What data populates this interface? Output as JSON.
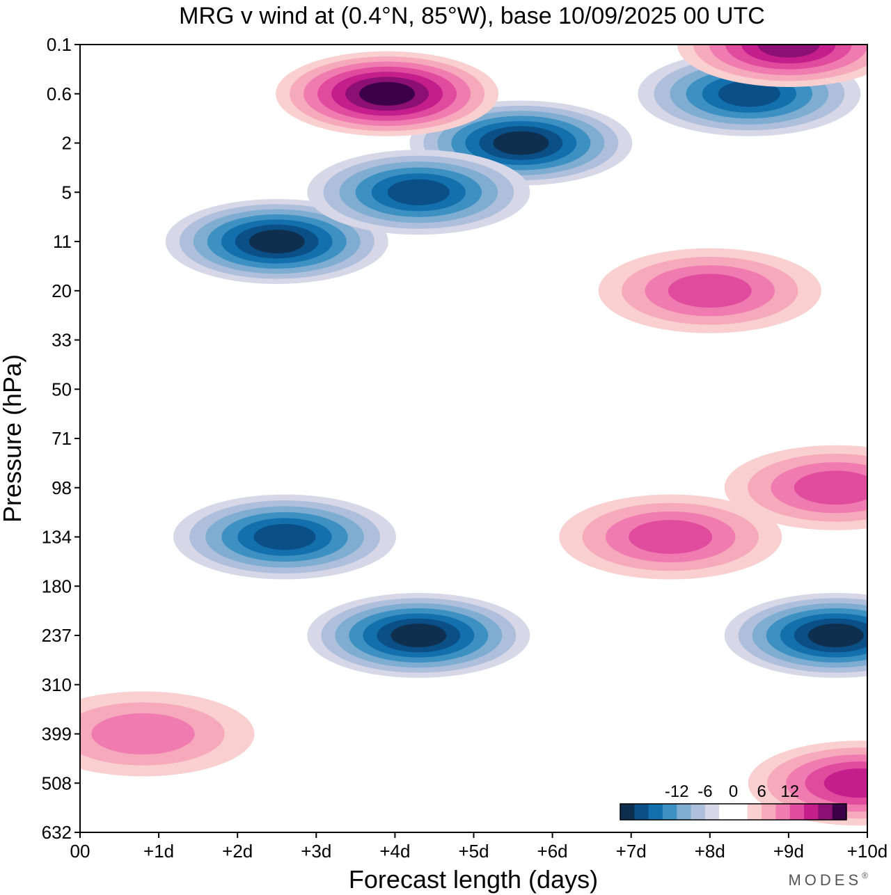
{
  "chart_data": {
    "type": "heatmap",
    "title": "MRG v wind at (0.4°N, 85°W),  base 10/09/2025  00 UTC",
    "xlabel": "Forecast length (days)",
    "ylabel": "Pressure (hPa)",
    "x_ticks": [
      "00",
      "+1d",
      "+2d",
      "+3d",
      "+4d",
      "+5d",
      "+6d",
      "+7d",
      "+8d",
      "+9d",
      "+10d"
    ],
    "x_range_days": [
      0,
      10
    ],
    "y_ticks": [
      "0.1",
      "0.6",
      "2",
      "5",
      "11",
      "20",
      "33",
      "50",
      "71",
      "98",
      "134",
      "180",
      "237",
      "310",
      "399",
      "508",
      "632"
    ],
    "y_direction": "pressure increasing downward",
    "colorbar": {
      "tick_labels": [
        "-12",
        "-6",
        "0",
        "6",
        "12"
      ],
      "levels": [
        -16,
        -14,
        -12,
        -10,
        -8,
        -6,
        -4,
        -2,
        2,
        4,
        6,
        8,
        10,
        12,
        14,
        16
      ],
      "colors": [
        "#0f2f4f",
        "#0a4f86",
        "#1470ad",
        "#3d90c2",
        "#7fadd2",
        "#aebfdc",
        "#d7d7e8",
        "#ffffff",
        "#ffffff",
        "#f9cfcf",
        "#f6a9bb",
        "#f07bb0",
        "#e04b9e",
        "#c41e8c",
        "#8c0f74",
        "#3c0048"
      ]
    },
    "features": [
      {
        "sign": "negative",
        "center_day": 2.6,
        "center_level": "134",
        "peak": -12
      },
      {
        "sign": "negative",
        "center_day": 4.3,
        "center_level": "237",
        "peak": -14
      },
      {
        "sign": "negative",
        "center_day": 9.6,
        "center_level": "237",
        "peak": -14
      },
      {
        "sign": "negative",
        "center_day": 2.5,
        "center_level": "11",
        "peak": -13
      },
      {
        "sign": "negative",
        "center_day": 5.6,
        "center_level": "2",
        "peak": -13
      },
      {
        "sign": "negative",
        "center_day": 4.3,
        "center_level": "5",
        "peak": -12
      },
      {
        "sign": "negative",
        "center_day": 8.5,
        "center_level": "0.6",
        "peak": -12
      },
      {
        "sign": "positive",
        "center_day": 3.9,
        "center_level": "0.6",
        "peak": 13
      },
      {
        "sign": "positive",
        "center_day": 9.0,
        "center_level": "0.1",
        "peak": 12
      },
      {
        "sign": "positive",
        "center_day": 9.9,
        "center_level": "508",
        "peak": 10
      },
      {
        "sign": "positive",
        "center_day": 7.5,
        "center_level": "134",
        "peak": 8
      },
      {
        "sign": "positive",
        "center_day": 8.0,
        "center_level": "20",
        "peak": 8
      },
      {
        "sign": "positive",
        "center_day": 9.6,
        "center_level": "98",
        "peak": 8
      },
      {
        "sign": "positive",
        "center_day": 0.8,
        "center_level": "399",
        "peak": 5
      }
    ]
  },
  "branding": {
    "logo_text": "MODES",
    "registered_mark": "®"
  }
}
